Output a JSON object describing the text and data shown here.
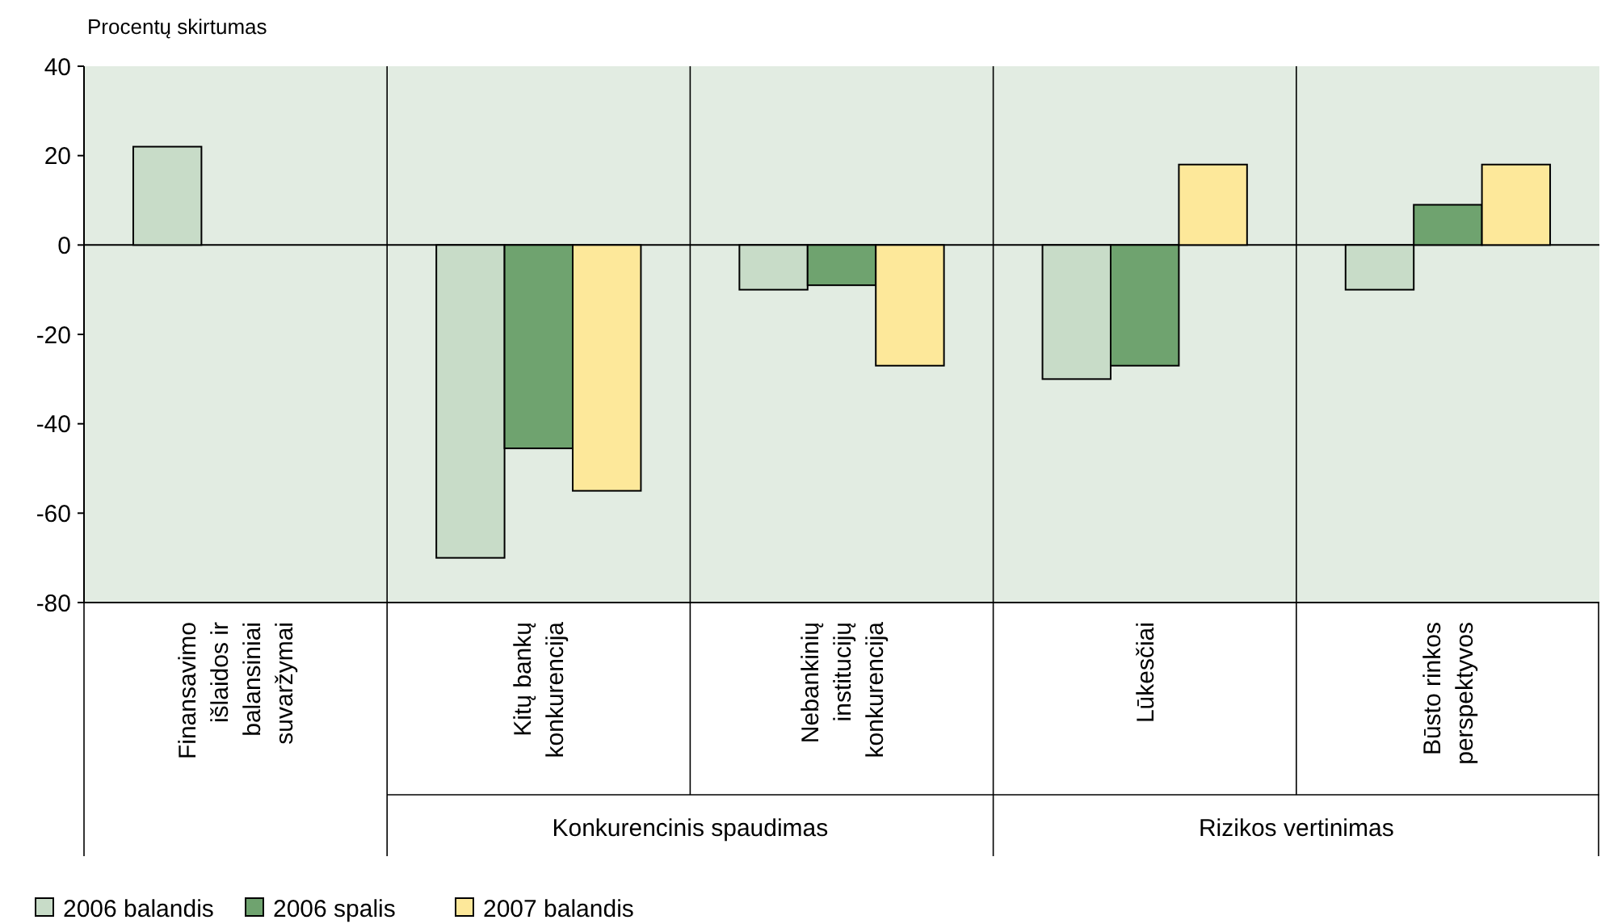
{
  "chart_data": {
    "type": "bar",
    "ylabel": "Procentų skirtumas",
    "categories": [
      "Finansavimo išlaidos ir balansiniai suvaržymai",
      "Kitų bankų konkurencija",
      "Nebankinių institucijų konkurencija",
      "Lūkesčiai",
      "Būsto rinkos perspektyvos"
    ],
    "series": [
      {
        "name": "2006 balandis",
        "color": "#c8dcc8",
        "values": [
          22,
          -70,
          -10,
          -30,
          -10
        ]
      },
      {
        "name": "2006 spalis",
        "color": "#6fa36f",
        "values": [
          null,
          -45.5,
          -9,
          -27,
          9
        ]
      },
      {
        "name": "2007 balandis",
        "color": "#fde89a",
        "values": [
          null,
          -55,
          -27,
          18,
          18
        ]
      }
    ],
    "ylim": [
      -80,
      40
    ],
    "yticks": [
      -80,
      -60,
      -40,
      -20,
      0,
      20,
      40
    ],
    "grid": false,
    "legend": "bottom",
    "annotations": [
      "Konkurencinis spaudimas",
      "Rizikos vertinimas"
    ]
  }
}
